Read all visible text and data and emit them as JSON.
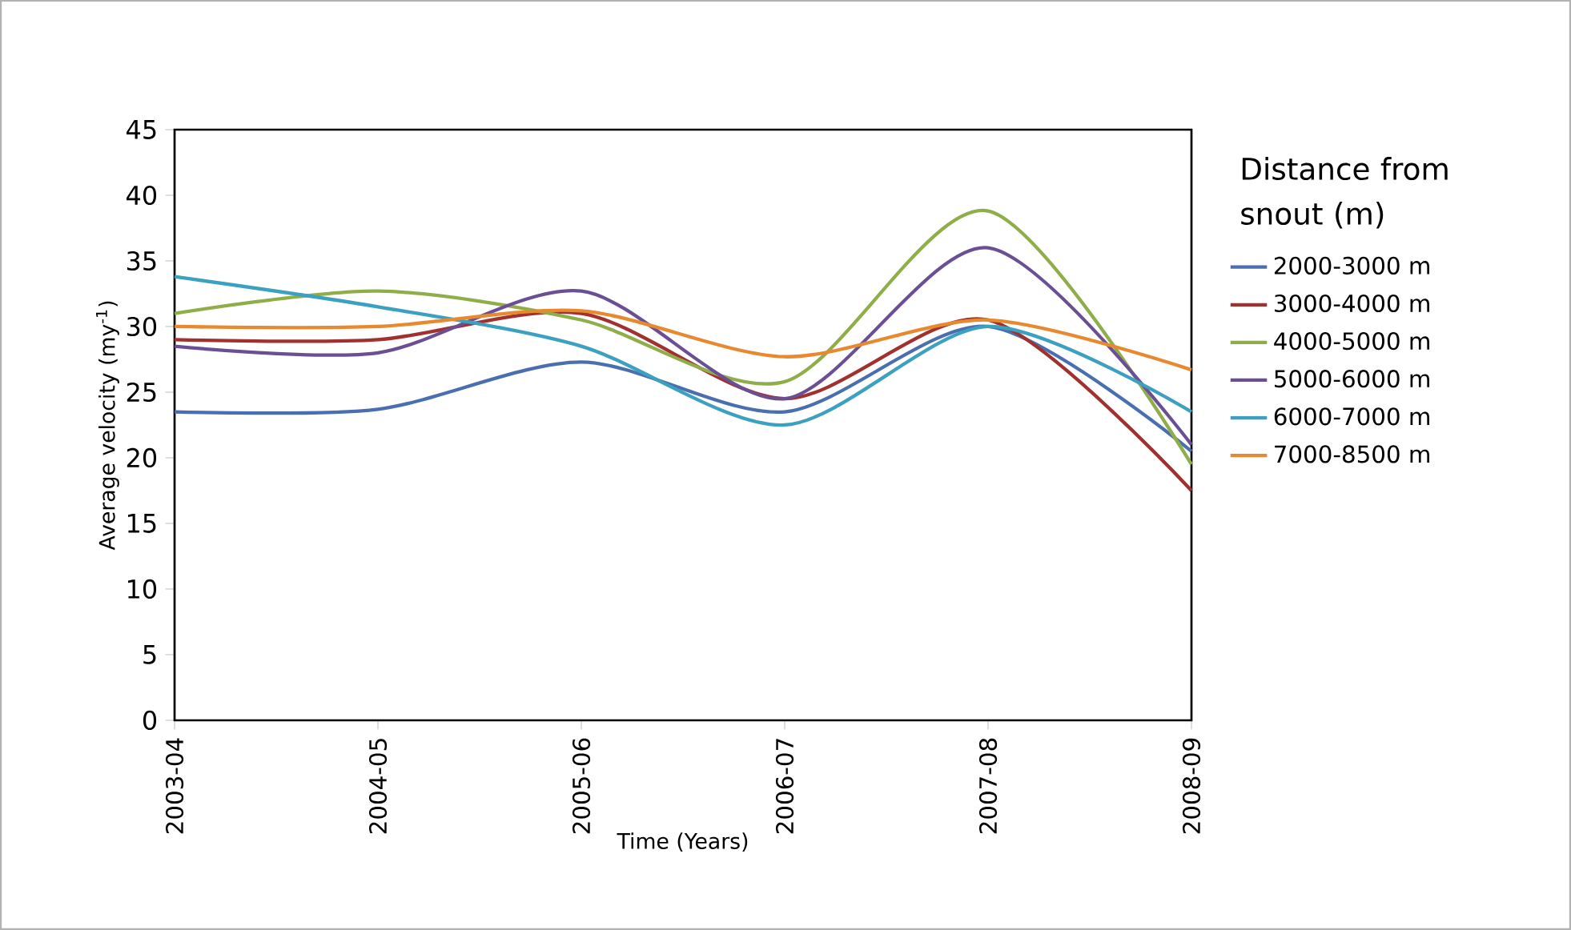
{
  "chart_data": {
    "type": "line",
    "xlabel": "Time (Years)",
    "ylabel": "Average velocity (my$^{-1}$)",
    "legend_title": "Distance from snout (m)",
    "categories": [
      "2003-04",
      "2004-05",
      "2005-06",
      "2006-07",
      "2007-08",
      "2008-09"
    ],
    "series": [
      {
        "name": "2000-3000 m",
        "color": "#4a6fb0",
        "values": [
          23.5,
          23.7,
          27.3,
          23.5,
          30,
          20.5
        ]
      },
      {
        "name": "3000-4000 m",
        "color": "#a0312f",
        "values": [
          29,
          29,
          31,
          24.5,
          30.5,
          17.5
        ]
      },
      {
        "name": "4000-5000 m",
        "color": "#8fae4a",
        "values": [
          31,
          32.7,
          30.5,
          25.8,
          38.8,
          19.5
        ]
      },
      {
        "name": "5000-6000 m",
        "color": "#6b4f95",
        "values": [
          28.5,
          28,
          32.7,
          24.5,
          36,
          21
        ]
      },
      {
        "name": "6000-7000 m",
        "color": "#3ca0c0",
        "values": [
          33.8,
          31.5,
          28.5,
          22.5,
          30,
          23.5
        ]
      },
      {
        "name": "7000-8500 m",
        "color": "#e8892f",
        "values": [
          30,
          30,
          31.2,
          27.7,
          30.5,
          26.7
        ]
      }
    ],
    "ylim": [
      0,
      45
    ],
    "yticks": [
      0,
      5,
      10,
      15,
      20,
      25,
      30,
      35,
      40,
      45
    ],
    "grid": false,
    "legend": "right",
    "marker": "none",
    "line_style": "solid"
  }
}
